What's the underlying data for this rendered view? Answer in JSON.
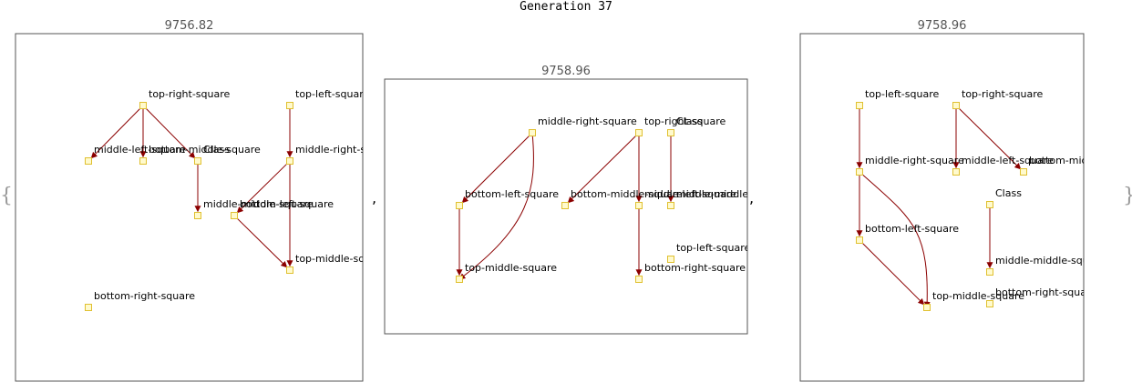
{
  "generation_title": "Generation 37",
  "left_brace": "{",
  "right_brace": "}",
  "separators": [
    ",",
    ","
  ],
  "colors": {
    "edge": "#8b0000",
    "node_fill": "#fffacd",
    "node_stroke": "#e0c030",
    "frame": "#555555",
    "score_text": "#555555"
  },
  "panels": [
    {
      "score": "9756.82",
      "nodes": [
        {
          "id": "trs",
          "label": "top-right-square"
        },
        {
          "id": "tls",
          "label": "top-left-square"
        },
        {
          "id": "mls",
          "label": "middle-left-square"
        },
        {
          "id": "bms",
          "label": "bottom-middle-square"
        },
        {
          "id": "cls",
          "label": "Class"
        },
        {
          "id": "mrs",
          "label": "middle-right-square"
        },
        {
          "id": "mms",
          "label": "middle-middle-square"
        },
        {
          "id": "bls",
          "label": "bottom-left-square"
        },
        {
          "id": "tms",
          "label": "top-middle-square"
        },
        {
          "id": "brs",
          "label": "bottom-right-square"
        }
      ],
      "edges": [
        {
          "from": "trs",
          "to": "mls"
        },
        {
          "from": "trs",
          "to": "bms"
        },
        {
          "from": "trs",
          "to": "cls"
        },
        {
          "from": "cls",
          "to": "mms"
        },
        {
          "from": "tls",
          "to": "mrs"
        },
        {
          "from": "mrs",
          "to": "bls"
        },
        {
          "from": "mrs",
          "to": "tms"
        },
        {
          "from": "bls",
          "to": "tms"
        }
      ]
    },
    {
      "score": "9758.96",
      "nodes": [
        {
          "id": "mrs",
          "label": "middle-right-square"
        },
        {
          "id": "trs",
          "label": "top-right-square"
        },
        {
          "id": "cls",
          "label": "Class"
        },
        {
          "id": "bls",
          "label": "bottom-left-square"
        },
        {
          "id": "bms",
          "label": "bottom-middle-square"
        },
        {
          "id": "mls",
          "label": "middle-left-square"
        },
        {
          "id": "mms",
          "label": "middle-middle-square"
        },
        {
          "id": "tls",
          "label": "top-left-square"
        },
        {
          "id": "tms",
          "label": "top-middle-square"
        },
        {
          "id": "brs",
          "label": "bottom-right-square"
        }
      ],
      "edges": [
        {
          "from": "mrs",
          "to": "bls"
        },
        {
          "from": "mrs",
          "to": "tms"
        },
        {
          "from": "bls",
          "to": "tms"
        },
        {
          "from": "trs",
          "to": "bms"
        },
        {
          "from": "trs",
          "to": "mls"
        },
        {
          "from": "cls",
          "to": "mms"
        },
        {
          "from": "mls",
          "to": "brs"
        }
      ]
    },
    {
      "score": "9758.96",
      "nodes": [
        {
          "id": "tls",
          "label": "top-left-square"
        },
        {
          "id": "trs",
          "label": "top-right-square"
        },
        {
          "id": "mrs",
          "label": "middle-right-square"
        },
        {
          "id": "mls",
          "label": "middle-left-square"
        },
        {
          "id": "bms",
          "label": "bottom-middle-square"
        },
        {
          "id": "cls",
          "label": "Class"
        },
        {
          "id": "bls",
          "label": "bottom-left-square"
        },
        {
          "id": "mms",
          "label": "middle-middle-square"
        },
        {
          "id": "tms",
          "label": "top-middle-square"
        },
        {
          "id": "brs",
          "label": "bottom-right-square"
        }
      ],
      "edges": [
        {
          "from": "tls",
          "to": "mrs"
        },
        {
          "from": "trs",
          "to": "mls"
        },
        {
          "from": "trs",
          "to": "bms"
        },
        {
          "from": "mrs",
          "to": "bls"
        },
        {
          "from": "mrs",
          "to": "tms"
        },
        {
          "from": "bls",
          "to": "tms"
        },
        {
          "from": "cls",
          "to": "mms"
        }
      ]
    }
  ]
}
